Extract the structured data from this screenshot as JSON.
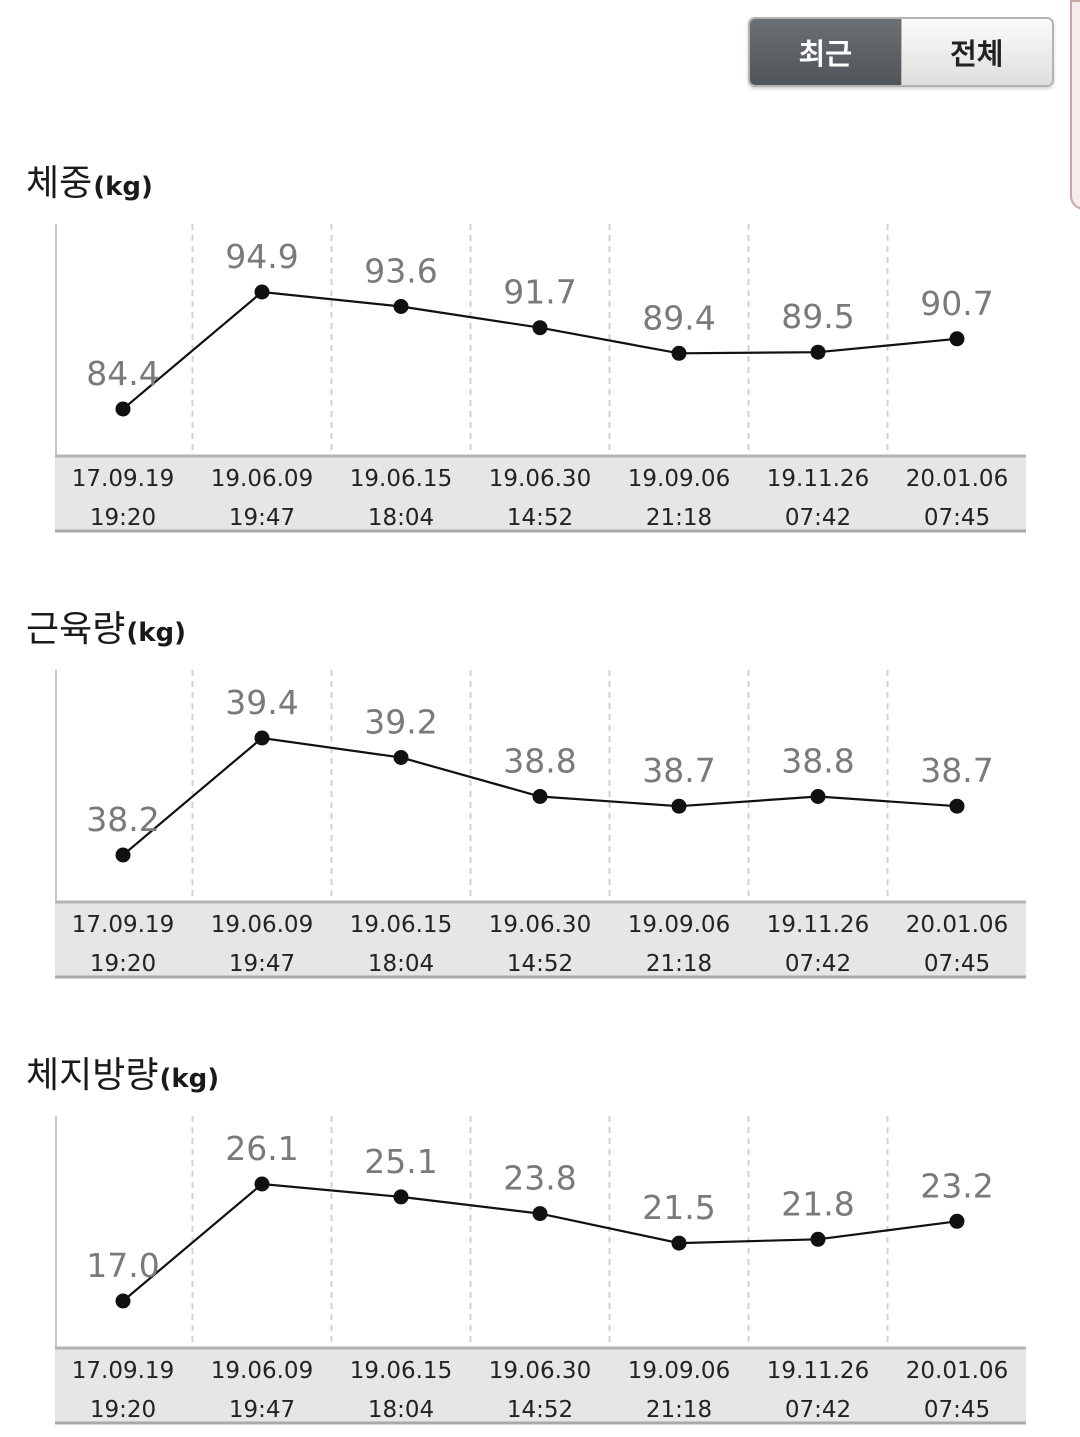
{
  "toggle": {
    "recent_label": "최근",
    "all_label": "전체"
  },
  "dates": [
    "17.09.19",
    "19.06.09",
    "19.06.15",
    "19.06.30",
    "19.09.06",
    "19.11.26",
    "20.01.06"
  ],
  "times": [
    "19:20",
    "19:47",
    "18:04",
    "14:52",
    "21:18",
    "07:42",
    "07:45"
  ],
  "charts": [
    {
      "title": "체중",
      "unit": "(kg)"
    },
    {
      "title": "근육량",
      "unit": "(kg)"
    },
    {
      "title": "체지방량",
      "unit": "(kg)"
    }
  ],
  "chart_data": [
    {
      "type": "line",
      "title": "체중(kg)",
      "x": [
        "17.09.19 19:20",
        "19.06.09 19:47",
        "19.06.15 18:04",
        "19.06.30 14:52",
        "19.09.06 21:18",
        "19.11.26 07:42",
        "20.01.06 07:45"
      ],
      "series": [
        {
          "values": [
            84.4,
            94.9,
            93.6,
            91.7,
            89.4,
            89.5,
            90.7
          ]
        }
      ],
      "labels": [
        "84.4",
        "94.9",
        "93.6",
        "91.7",
        "89.4",
        "89.5",
        "90.7"
      ],
      "grid": "vertical-dashed"
    },
    {
      "type": "line",
      "title": "근육량(kg)",
      "x": [
        "17.09.19 19:20",
        "19.06.09 19:47",
        "19.06.15 18:04",
        "19.06.30 14:52",
        "19.09.06 21:18",
        "19.11.26 07:42",
        "20.01.06 07:45"
      ],
      "series": [
        {
          "values": [
            38.2,
            39.4,
            39.2,
            38.8,
            38.7,
            38.8,
            38.7
          ]
        }
      ],
      "labels": [
        "38.2",
        "39.4",
        "39.2",
        "38.8",
        "38.7",
        "38.8",
        "38.7"
      ],
      "grid": "vertical-dashed"
    },
    {
      "type": "line",
      "title": "체지방량(kg)",
      "x": [
        "17.09.19 19:20",
        "19.06.09 19:47",
        "19.06.15 18:04",
        "19.06.30 14:52",
        "19.09.06 21:18",
        "19.11.26 07:42",
        "20.01.06 07:45"
      ],
      "series": [
        {
          "values": [
            17.0,
            26.1,
            25.1,
            23.8,
            21.5,
            21.8,
            23.2
          ]
        }
      ],
      "labels": [
        "17.0",
        "26.1",
        "25.1",
        "23.8",
        "21.5",
        "21.8",
        "23.2"
      ],
      "grid": "vertical-dashed"
    }
  ]
}
